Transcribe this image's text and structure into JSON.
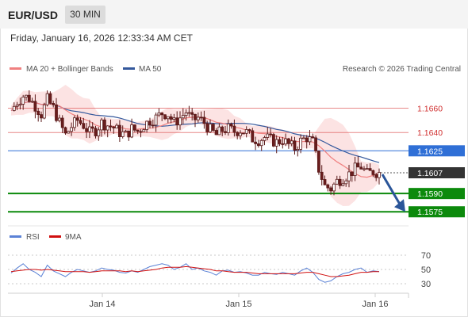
{
  "header": {
    "pair": "EUR/USD",
    "timeframe": "30 MIN",
    "datetime": "Friday, January 16, 2026 12:33:34 AM CET"
  },
  "legend": {
    "item1": "MA 20 + Bollinger Bands",
    "item2": "MA 50",
    "credit": "Research © 2026 Trading Central"
  },
  "rsi_legend": {
    "item1": "RSI",
    "item2": "9MA"
  },
  "colors": {
    "ma20": "#f08080",
    "ma50": "#34589c",
    "bands": "#fbdada",
    "blue_level": "#2f6fd6",
    "green_level": "#0c8a0c",
    "red_level": "#e06060",
    "rsi": "#5b82d6",
    "rsi_ma": "#d01010",
    "arrow": "#2a5599",
    "current": "#333333"
  },
  "chart_data": [
    {
      "type": "candlestick",
      "title": "EUR/USD 30 MIN",
      "x_labels": [
        "Jan 14",
        "Jan 15",
        "Jan 16"
      ],
      "ylim": [
        1.1568,
        1.1685
      ],
      "overlays": [
        "MA 20 + Bollinger Bands",
        "MA 50"
      ],
      "levels": [
        {
          "value": "1.1660",
          "color": "red",
          "kind": "resistance"
        },
        {
          "value": "1.1640",
          "color": "red",
          "kind": "resistance"
        },
        {
          "value": "1.1625",
          "color": "blue",
          "kind": "pivot"
        },
        {
          "value": "1.1607",
          "color": "dark",
          "kind": "current price"
        },
        {
          "value": "1.1590",
          "color": "green",
          "kind": "support"
        },
        {
          "value": "1.1575",
          "color": "green",
          "kind": "support"
        }
      ],
      "arrow": {
        "from": 1.1607,
        "to": 1.1575,
        "direction": "down"
      },
      "price_path": [
        1.1658,
        1.1665,
        1.167,
        1.1668,
        1.1662,
        1.1655,
        1.1667,
        1.166,
        1.1648,
        1.1638,
        1.1645,
        1.165,
        1.1646,
        1.164,
        1.1642,
        1.1648,
        1.1646,
        1.1644,
        1.164,
        1.1638,
        1.1643,
        1.1641,
        1.1646,
        1.165,
        1.1652,
        1.1656,
        1.1655,
        1.1648,
        1.1652,
        1.1657,
        1.165,
        1.1652,
        1.1648,
        1.1642,
        1.1638,
        1.1642,
        1.1643,
        1.1641,
        1.1642,
        1.164,
        1.1635,
        1.1634,
        1.1636,
        1.1634,
        1.1632,
        1.1634,
        1.163,
        1.1627,
        1.1633,
        1.1636,
        1.1632,
        1.161,
        1.1596,
        1.1594,
        1.16,
        1.1603,
        1.1606,
        1.161,
        1.1612,
        1.1606,
        1.1608,
        1.1607
      ]
    },
    {
      "type": "line",
      "title": "RSI",
      "series": [
        {
          "name": "RSI"
        },
        {
          "name": "9MA"
        }
      ],
      "yticks": [
        "70",
        "50",
        "30"
      ],
      "ylim": [
        20,
        80
      ],
      "rsi": [
        45,
        52,
        58,
        50,
        46,
        40,
        56,
        48,
        44,
        40,
        46,
        50,
        48,
        46,
        48,
        52,
        50,
        49,
        46,
        45,
        48,
        46,
        50,
        54,
        56,
        58,
        56,
        50,
        53,
        58,
        50,
        52,
        48,
        46,
        42,
        48,
        49,
        46,
        47,
        45,
        42,
        42,
        46,
        44,
        43,
        46,
        44,
        42,
        48,
        52,
        46,
        36,
        32,
        34,
        40,
        44,
        46,
        50,
        52,
        46,
        48,
        47
      ],
      "ma9": [
        47,
        48,
        49,
        50,
        50,
        49,
        50,
        49,
        48,
        47,
        47,
        47,
        47,
        46,
        47,
        48,
        48,
        48,
        48,
        47,
        48,
        47,
        48,
        49,
        50,
        52,
        53,
        53,
        53,
        54,
        53,
        52,
        51,
        50,
        48,
        48,
        47,
        46,
        46,
        46,
        45,
        44,
        44,
        44,
        44,
        44,
        44,
        44,
        45,
        46,
        46,
        44,
        42,
        40,
        40,
        41,
        42,
        44,
        46,
        46,
        47,
        47
      ]
    }
  ]
}
